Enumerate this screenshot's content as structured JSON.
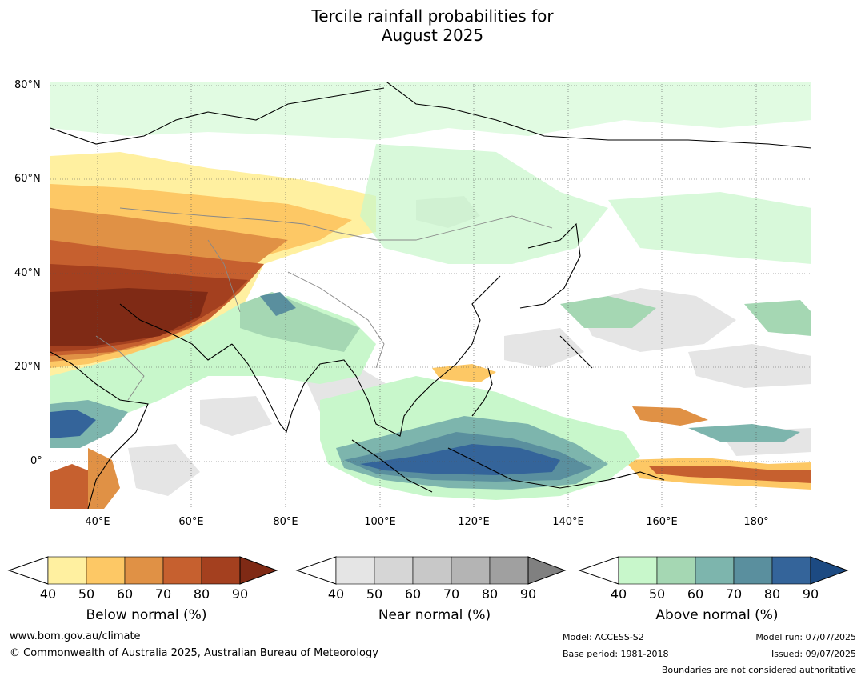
{
  "title_line1": "Tercile rainfall probabilities for",
  "title_line2": "August 2025",
  "map": {
    "lat_labels": [
      "80°N",
      "60°N",
      "40°N",
      "20°N",
      "0°"
    ],
    "lon_labels": [
      "40°E",
      "60°E",
      "80°E",
      "100°E",
      "120°E",
      "140°E",
      "160°E",
      "180°"
    ],
    "extent": {
      "lon_min": 30,
      "lon_max": 192,
      "lat_min": -10,
      "lat_max": 81
    }
  },
  "legends": [
    {
      "caption": "Below normal (%)",
      "ticks": [
        "40",
        "50",
        "60",
        "70",
        "80",
        "90"
      ],
      "colors": [
        "#fff0a0",
        "#fdc865",
        "#e09145",
        "#c6602f",
        "#a4401f",
        "#7f2a15"
      ]
    },
    {
      "caption": "Near normal (%)",
      "ticks": [
        "40",
        "50",
        "60",
        "70",
        "80",
        "90"
      ],
      "colors": [
        "#e5e5e5",
        "#d6d6d6",
        "#c8c8c8",
        "#b4b4b4",
        "#a0a0a0",
        "#808080"
      ]
    },
    {
      "caption": "Above normal (%)",
      "ticks": [
        "40",
        "50",
        "60",
        "70",
        "80",
        "90"
      ],
      "colors": [
        "#c8f7cb",
        "#a5d7b3",
        "#7db5ad",
        "#5a8f9e",
        "#34649a",
        "#1c4a82"
      ]
    }
  ],
  "footer": {
    "website": "www.bom.gov.au/climate",
    "copyright": "© Commonwealth of Australia 2025, Australian Bureau of Meteorology",
    "model": "Model: ACCESS-S2",
    "base_period": "Base period: 1981-2018",
    "model_run": "Model run: 07/07/2025",
    "issued": "Issued: 09/07/2025",
    "disclaimer": "Boundaries are not considered authoritative"
  }
}
